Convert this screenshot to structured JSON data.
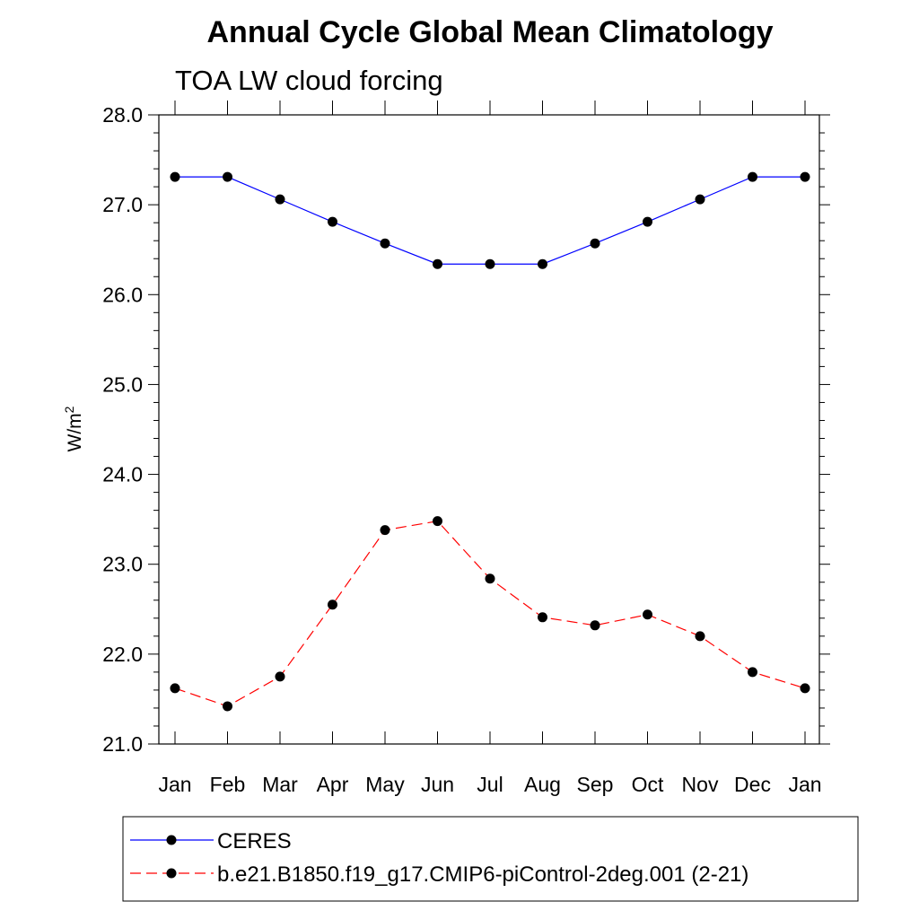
{
  "chart_data": {
    "type": "line",
    "title": "Annual Cycle Global Mean Climatology",
    "subtitle": "TOA LW cloud forcing",
    "xlabel": "",
    "ylabel": "W/m",
    "ylabel_sup": "2",
    "categories": [
      "Jan",
      "Feb",
      "Mar",
      "Apr",
      "May",
      "Jun",
      "Jul",
      "Aug",
      "Sep",
      "Oct",
      "Nov",
      "Dec",
      "Jan"
    ],
    "ylim": [
      21.0,
      28.0
    ],
    "yticks": [
      "21.0",
      "22.0",
      "23.0",
      "24.0",
      "25.0",
      "26.0",
      "27.0",
      "28.0"
    ],
    "grid": false,
    "legend_position": "bottom",
    "series": [
      {
        "name": "CERES",
        "color": "#0000ff",
        "dash": "solid",
        "values": [
          27.31,
          27.31,
          27.06,
          26.81,
          26.57,
          26.34,
          26.34,
          26.34,
          26.57,
          26.81,
          27.06,
          27.31,
          27.31
        ]
      },
      {
        "name": "b.e21.B1850.f19_g17.CMIP6-piControl-2deg.001 (2-21)",
        "color": "#ff0000",
        "dash": "dashed",
        "values": [
          21.62,
          21.42,
          21.75,
          22.55,
          23.38,
          23.48,
          22.84,
          22.41,
          22.32,
          22.44,
          22.2,
          21.8,
          21.62
        ]
      }
    ]
  }
}
